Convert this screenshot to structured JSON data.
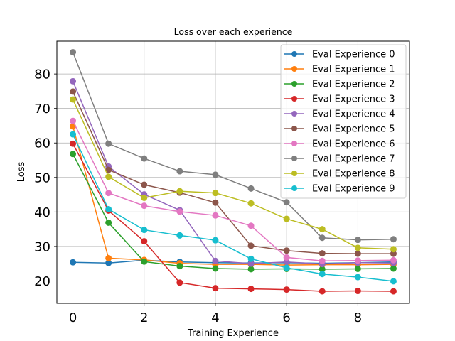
{
  "chart_data": {
    "type": "line",
    "title": "Loss over each experience",
    "xlabel": "Training Experience",
    "ylabel": "Loss",
    "xlim": [
      -0.45,
      9.45
    ],
    "ylim": [
      13.5,
      89.5
    ],
    "xticks": [
      0,
      2,
      4,
      6,
      8
    ],
    "yticks": [
      20,
      30,
      40,
      50,
      60,
      70,
      80
    ],
    "grid": true,
    "legend_position": "top-right",
    "x": [
      0,
      1,
      2,
      3,
      4,
      5,
      6,
      7,
      8,
      9
    ],
    "series": [
      {
        "name": "Eval Experience 0",
        "color": "#1f77b4",
        "values": [
          25.4,
          25.2,
          26.0,
          25.5,
          25.3,
          25.2,
          25.3,
          25.1,
          25.3,
          25.5
        ]
      },
      {
        "name": "Eval Experience 1",
        "color": "#ff7f0e",
        "values": [
          64.8,
          26.6,
          26.1,
          25.1,
          24.8,
          24.8,
          24.6,
          24.7,
          24.7,
          24.8
        ]
      },
      {
        "name": "Eval Experience 2",
        "color": "#2ca02c",
        "values": [
          56.8,
          36.9,
          25.6,
          24.3,
          23.6,
          23.4,
          23.5,
          23.4,
          23.5,
          23.6
        ]
      },
      {
        "name": "Eval Experience 3",
        "color": "#d62728",
        "values": [
          59.8,
          40.4,
          31.5,
          19.5,
          17.9,
          17.7,
          17.5,
          17.0,
          17.1,
          17.0
        ]
      },
      {
        "name": "Eval Experience 4",
        "color": "#9467bd",
        "values": [
          77.9,
          53.2,
          45.1,
          40.5,
          25.8,
          25.0,
          25.5,
          24.9,
          25.3,
          25.2
        ]
      },
      {
        "name": "Eval Experience 5",
        "color": "#8c564b",
        "values": [
          74.9,
          52.2,
          47.9,
          45.6,
          42.7,
          30.2,
          28.8,
          28.0,
          27.9,
          27.9
        ]
      },
      {
        "name": "Eval Experience 6",
        "color": "#e377c2",
        "values": [
          66.4,
          45.5,
          41.8,
          40.1,
          39.0,
          36.0,
          26.8,
          25.8,
          25.9,
          26.0
        ]
      },
      {
        "name": "Eval Experience 7",
        "color": "#7f7f7f",
        "values": [
          86.3,
          59.8,
          55.5,
          51.8,
          50.8,
          46.8,
          42.8,
          32.5,
          31.9,
          32.1
        ]
      },
      {
        "name": "Eval Experience 8",
        "color": "#bcbd22",
        "values": [
          72.6,
          50.2,
          44.1,
          46.0,
          45.5,
          42.5,
          38.0,
          35.0,
          29.6,
          29.2
        ]
      },
      {
        "name": "Eval Experience 9",
        "color": "#17becf",
        "values": [
          62.5,
          40.8,
          34.8,
          33.2,
          31.8,
          26.4,
          23.8,
          22.0,
          21.1,
          19.9
        ]
      }
    ]
  }
}
